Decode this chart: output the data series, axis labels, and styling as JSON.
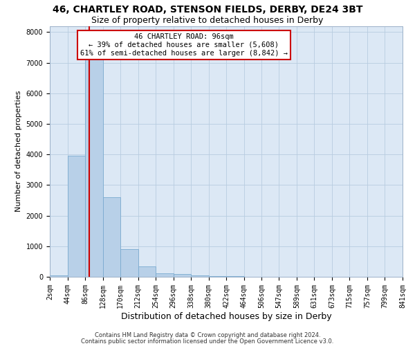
{
  "title1": "46, CHARTLEY ROAD, STENSON FIELDS, DERBY, DE24 3BT",
  "title2": "Size of property relative to detached houses in Derby",
  "xlabel": "Distribution of detached houses by size in Derby",
  "ylabel": "Number of detached properties",
  "footnote1": "Contains HM Land Registry data © Crown copyright and database right 2024.",
  "footnote2": "Contains public sector information licensed under the Open Government Licence v3.0.",
  "bin_edges": [
    2,
    44,
    86,
    128,
    170,
    212,
    254,
    296,
    338,
    380,
    422,
    464,
    506,
    547,
    589,
    631,
    673,
    715,
    757,
    799,
    841
  ],
  "bar_heights": [
    50,
    3950,
    7500,
    2600,
    900,
    350,
    120,
    100,
    50,
    30,
    20,
    10,
    5,
    3,
    2,
    1,
    1,
    1,
    1,
    1
  ],
  "bar_color": "#b8d0e8",
  "bar_edge_color": "#7aaacf",
  "property_size": 96,
  "red_line_color": "#cc0000",
  "annotation_line1": "46 CHARTLEY ROAD: 96sqm",
  "annotation_line2": "← 39% of detached houses are smaller (5,608)",
  "annotation_line3": "61% of semi-detached houses are larger (8,842) →",
  "annotation_box_facecolor": "#ffffff",
  "annotation_box_edgecolor": "#cc0000",
  "ylim": [
    0,
    8200
  ],
  "yticks": [
    0,
    1000,
    2000,
    3000,
    4000,
    5000,
    6000,
    7000,
    8000
  ],
  "bg_axes": "#dce8f5",
  "bg_fig": "#ffffff",
  "grid_color": "#b8cce0",
  "title1_fontsize": 10,
  "title2_fontsize": 9,
  "xlabel_fontsize": 9,
  "ylabel_fontsize": 8,
  "tick_fontsize": 7,
  "annot_fontsize": 7.5,
  "footnote_fontsize": 6
}
